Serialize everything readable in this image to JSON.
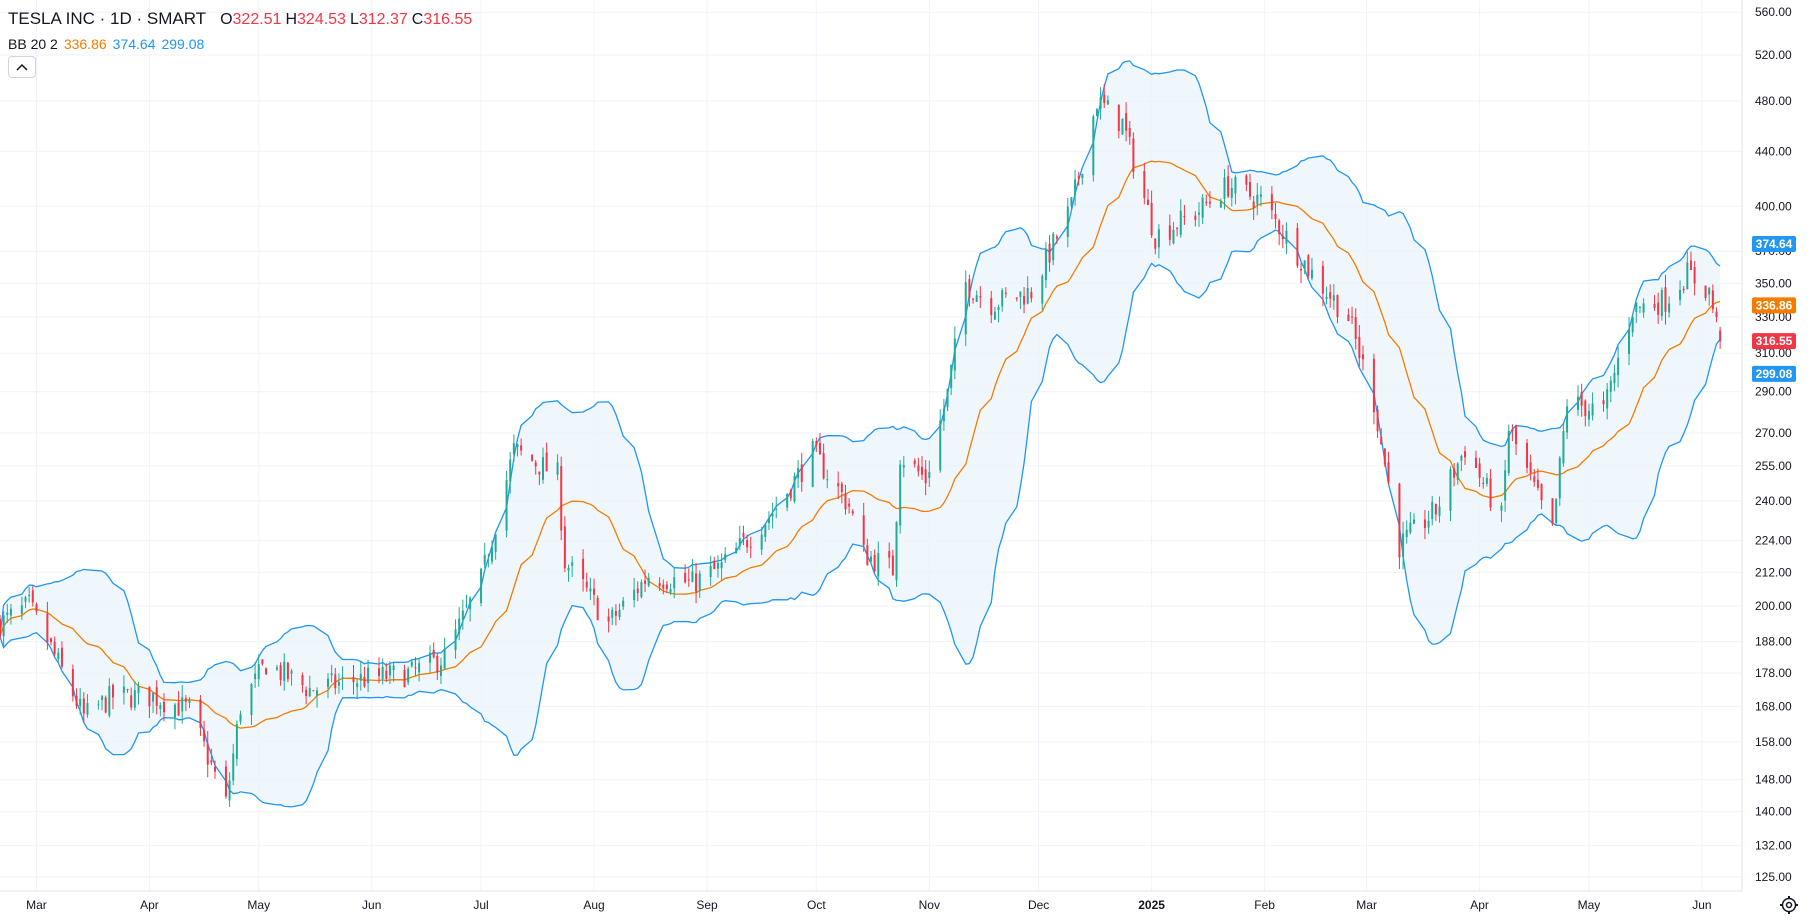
{
  "legend": {
    "symbol": "TESLA INC · 1D · SMART",
    "open_k": "O",
    "open": "322.51",
    "high_k": "H",
    "high": "324.53",
    "low_k": "L",
    "low": "312.37",
    "close_k": "C",
    "close": "316.55",
    "bb_label": "BB 20 2",
    "bb_mid": "336.86",
    "bb_upper": "374.64",
    "bb_lower": "299.08"
  },
  "icons": {
    "collapse": "chevron-up-icon",
    "settings": "gear-icon"
  },
  "colors": {
    "up": "#22ab94",
    "down": "#f23645",
    "band": "#2196f3",
    "basis": "#f57c00",
    "band_fill": "#eaf4fc"
  },
  "chart_data": {
    "type": "candlestick",
    "title": "",
    "y_scale": "log",
    "ylim": [
      122,
      572
    ],
    "y_ticks": [
      "560.00",
      "520.00",
      "480.00",
      "440.00",
      "400.00",
      "370.00",
      "350.00",
      "330.00",
      "310.00",
      "290.00",
      "270.00",
      "255.00",
      "240.00",
      "224.00",
      "212.00",
      "200.00",
      "188.00",
      "178.00",
      "168.00",
      "158.00",
      "148.00",
      "140.00",
      "132.00",
      "125.00"
    ],
    "x_ticks": [
      "Mar",
      "Apr",
      "May",
      "Jun",
      "Jul",
      "Aug",
      "Sep",
      "Oct",
      "Nov",
      "Dec",
      "2025",
      "Feb",
      "Mar",
      "Apr",
      "May",
      "Jun"
    ],
    "x_tick_dates": [
      "2024-03-01",
      "2024-04-01",
      "2024-05-01",
      "2024-06-01",
      "2024-07-01",
      "2024-08-01",
      "2024-09-01",
      "2024-10-01",
      "2024-11-01",
      "2024-12-01",
      "2025-01-01",
      "2025-02-01",
      "2025-03-01",
      "2025-04-01",
      "2025-05-01",
      "2025-06-01"
    ],
    "x_range": [
      "2024-02-20",
      "2025-06-12"
    ],
    "price_labels": [
      {
        "name": "bb-upper",
        "value": 374.64,
        "text": "374.64",
        "color": "#2196f3"
      },
      {
        "name": "bb-basis",
        "value": 336.86,
        "text": "336.86",
        "color": "#f57c00"
      },
      {
        "name": "last-close",
        "value": 316.55,
        "text": "316.55",
        "color": "#f23645"
      },
      {
        "name": "bb-lower",
        "value": 299.08,
        "text": "299.08",
        "color": "#2196f3"
      }
    ],
    "anchors": [
      {
        "d": "2024-02-20",
        "p": 194
      },
      {
        "d": "2024-02-28",
        "p": 200
      },
      {
        "d": "2024-03-05",
        "p": 186
      },
      {
        "d": "2024-03-14",
        "p": 165
      },
      {
        "d": "2024-03-22",
        "p": 171
      },
      {
        "d": "2024-04-02",
        "p": 171
      },
      {
        "d": "2024-04-12",
        "p": 167
      },
      {
        "d": "2024-04-22",
        "p": 142
      },
      {
        "d": "2024-04-26",
        "p": 168
      },
      {
        "d": "2024-05-03",
        "p": 181
      },
      {
        "d": "2024-05-15",
        "p": 173
      },
      {
        "d": "2024-05-28",
        "p": 176
      },
      {
        "d": "2024-06-12",
        "p": 178
      },
      {
        "d": "2024-06-21",
        "p": 183
      },
      {
        "d": "2024-07-01",
        "p": 209
      },
      {
        "d": "2024-07-10",
        "p": 262
      },
      {
        "d": "2024-07-22",
        "p": 251
      },
      {
        "d": "2024-07-24",
        "p": 216
      },
      {
        "d": "2024-08-05",
        "p": 194
      },
      {
        "d": "2024-08-16",
        "p": 211
      },
      {
        "d": "2024-08-28",
        "p": 208
      },
      {
        "d": "2024-09-05",
        "p": 214
      },
      {
        "d": "2024-09-20",
        "p": 237
      },
      {
        "d": "2024-09-30",
        "p": 261
      },
      {
        "d": "2024-10-10",
        "p": 238
      },
      {
        "d": "2024-10-14",
        "p": 219
      },
      {
        "d": "2024-10-22",
        "p": 213
      },
      {
        "d": "2024-10-24",
        "p": 260
      },
      {
        "d": "2024-10-31",
        "p": 249
      },
      {
        "d": "2024-11-06",
        "p": 289
      },
      {
        "d": "2024-11-11",
        "p": 350
      },
      {
        "d": "2024-11-18",
        "p": 338
      },
      {
        "d": "2024-11-29",
        "p": 345
      },
      {
        "d": "2024-12-10",
        "p": 400
      },
      {
        "d": "2024-12-17",
        "p": 480
      },
      {
        "d": "2024-12-24",
        "p": 462
      },
      {
        "d": "2025-01-02",
        "p": 380
      },
      {
        "d": "2025-01-13",
        "p": 395
      },
      {
        "d": "2025-01-22",
        "p": 415
      },
      {
        "d": "2025-01-31",
        "p": 404
      },
      {
        "d": "2025-02-14",
        "p": 356
      },
      {
        "d": "2025-02-24",
        "p": 330
      },
      {
        "d": "2025-03-03",
        "p": 285
      },
      {
        "d": "2025-03-10",
        "p": 222
      },
      {
        "d": "2025-03-20",
        "p": 236
      },
      {
        "d": "2025-03-28",
        "p": 263
      },
      {
        "d": "2025-04-07",
        "p": 233
      },
      {
        "d": "2025-04-09",
        "p": 272
      },
      {
        "d": "2025-04-21",
        "p": 227
      },
      {
        "d": "2025-04-25",
        "p": 285
      },
      {
        "d": "2025-05-05",
        "p": 280
      },
      {
        "d": "2025-05-13",
        "p": 335
      },
      {
        "d": "2025-05-22",
        "p": 340
      },
      {
        "d": "2025-05-28",
        "p": 356
      },
      {
        "d": "2025-06-03",
        "p": 345
      },
      {
        "d": "2025-06-06",
        "p": 316.55
      }
    ]
  }
}
